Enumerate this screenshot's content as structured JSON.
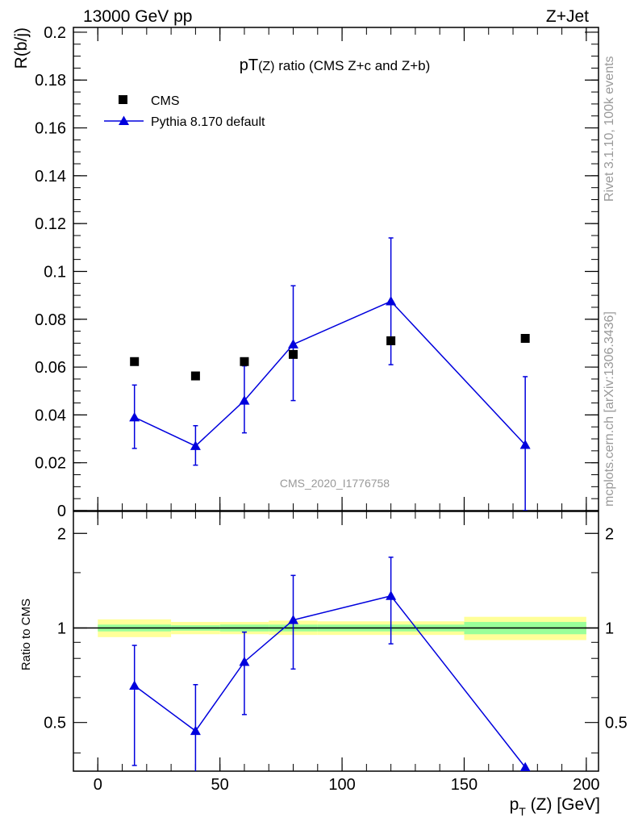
{
  "header": {
    "left": "13000 GeV pp",
    "right": "Z+Jet"
  },
  "side_labels": {
    "rivet": "Rivet 3.1.10,  100k events",
    "mcplots": "mcplots.cern.ch [arXiv:1306.3436]"
  },
  "colors": {
    "mc": "#0000dd",
    "data": "#000000",
    "band_inner": "#99ff99",
    "band_outer": "#ffff99",
    "watermark": "#999999"
  },
  "chart_data": [
    {
      "type": "scatter",
      "name": "main",
      "title": "pT(Z) ratio (CMS  Z+c and Z+b)",
      "title_main": "pT",
      "title_sub": "(Z)",
      "title_rest": " ratio (CMS  Z+c and Z+b)",
      "ylabel": "R(b/j)",
      "xlim": [
        -10,
        205
      ],
      "ylim": [
        0,
        0.202
      ],
      "yticks": [
        0,
        0.02,
        0.04,
        0.06,
        0.08,
        0.1,
        0.12,
        0.14,
        0.16,
        0.18,
        0.2
      ],
      "ytick_labels": [
        "0",
        "0.02",
        "0.04",
        "0.06",
        "0.08",
        "0.1",
        "0.12",
        "0.14",
        "0.16",
        "0.18",
        "0.2"
      ],
      "watermark": "CMS_2020_I1776758",
      "legend": [
        {
          "label": "CMS",
          "marker": "square"
        },
        {
          "label": "Pythia 8.170 default",
          "marker": "triangle"
        }
      ],
      "series": [
        {
          "name": "CMS",
          "x": [
            15,
            40,
            60,
            80,
            120,
            175
          ],
          "y": [
            0.0623,
            0.0563,
            0.0623,
            0.0653,
            0.071,
            0.072
          ]
        },
        {
          "name": "Pythia 8.170 default",
          "x": [
            15,
            40,
            60,
            80,
            120,
            175
          ],
          "y": [
            0.039,
            0.027,
            0.046,
            0.0695,
            0.0875,
            0.0275
          ],
          "yerr_low": [
            0.026,
            0.019,
            0.0325,
            0.046,
            0.061,
            0.0
          ],
          "yerr_high": [
            0.0525,
            0.0355,
            0.0605,
            0.094,
            0.114,
            0.056
          ]
        }
      ]
    },
    {
      "type": "scatter",
      "name": "ratio",
      "ylabel": "Ratio to CMS",
      "xlabel_main": "p",
      "xlabel_sub": "T",
      "xlabel_rest": " (Z) [GeV]",
      "xlabel": "pT (Z) [GeV]",
      "xlim": [
        -10,
        205
      ],
      "ylim": [
        0.35,
        2.35
      ],
      "yticks": [
        0.5,
        1,
        2
      ],
      "ytick_labels": [
        "0.5",
        "1",
        "2"
      ],
      "xticks": [
        0,
        50,
        100,
        150,
        200
      ],
      "xtick_labels": [
        "0",
        "50",
        "100",
        "150",
        "200"
      ],
      "bands": [
        {
          "x0": 0,
          "x1": 30,
          "inner": [
            0.975,
            1.025
          ],
          "outer": [
            0.935,
            1.065
          ]
        },
        {
          "x0": 30,
          "x1": 50,
          "inner": [
            0.98,
            1.02
          ],
          "outer": [
            0.955,
            1.045
          ]
        },
        {
          "x0": 50,
          "x1": 70,
          "inner": [
            0.975,
            1.025
          ],
          "outer": [
            0.955,
            1.045
          ]
        },
        {
          "x0": 70,
          "x1": 90,
          "inner": [
            0.975,
            1.025
          ],
          "outer": [
            0.95,
            1.055
          ]
        },
        {
          "x0": 90,
          "x1": 150,
          "inner": [
            0.975,
            1.025
          ],
          "outer": [
            0.95,
            1.05
          ]
        },
        {
          "x0": 150,
          "x1": 200,
          "inner": [
            0.955,
            1.045
          ],
          "outer": [
            0.915,
            1.085
          ]
        }
      ],
      "series": [
        {
          "name": "Pythia 8.170 default",
          "x": [
            15,
            40,
            60,
            80,
            120,
            175
          ],
          "y": [
            0.655,
            0.47,
            0.78,
            1.06,
            1.265,
            0.36
          ],
          "yerr_low": [
            0.365,
            0.33,
            0.53,
            0.74,
            0.89,
            0.0
          ],
          "yerr_high": [
            0.88,
            0.66,
            0.97,
            1.47,
            1.68,
            0.36
          ]
        }
      ]
    }
  ]
}
